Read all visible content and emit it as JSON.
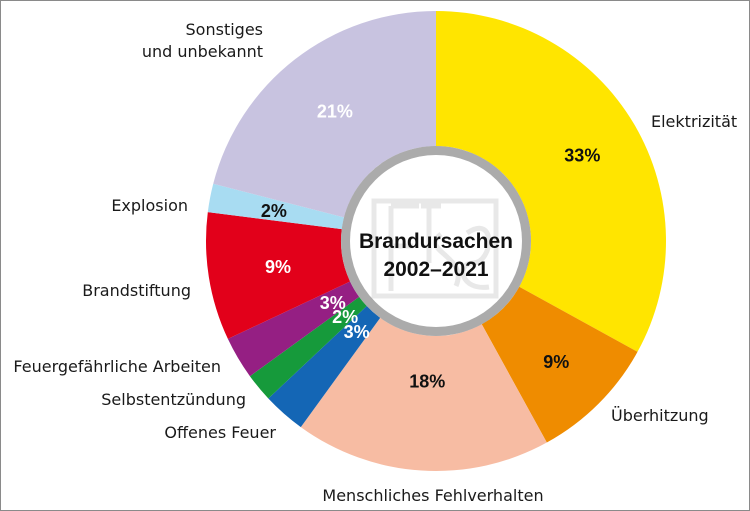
{
  "chart_data": {
    "type": "pie",
    "title": "Brandursachen",
    "subtitle": "2002–2021",
    "unit": "%",
    "categories": [
      "Elektrizität",
      "Überhitzung",
      "Menschliches Fehlverhalten",
      "Offenes Feuer",
      "Selbstentzündung",
      "Feuergefährliche Arbeiten",
      "Brandstiftung",
      "Explosion",
      "Sonstiges und unbekannt"
    ],
    "values": [
      33,
      9,
      18,
      3,
      2,
      3,
      9,
      2,
      21
    ],
    "value_labels": [
      "33%",
      "9%",
      "18%",
      "3%",
      "2%",
      "3%",
      "9%",
      "2%",
      "21%"
    ],
    "label_lines": [
      [
        "Elektrizität"
      ],
      [
        "Überhitzung"
      ],
      [
        "Menschliches Fehlverhalten"
      ],
      [
        "Offenes Feuer"
      ],
      [
        "Selbstentzündung"
      ],
      [
        "Feuergefährliche Arbeiten"
      ],
      [
        "Brandstiftung"
      ],
      [
        "Explosion"
      ],
      [
        "Sonstiges",
        "und unbekannt"
      ]
    ],
    "colors": [
      "#ffe500",
      "#ef8c00",
      "#f7bca3",
      "#1466b5",
      "#169a3b",
      "#951f83",
      "#e2001a",
      "#a8dcf2",
      "#c8c3e0"
    ],
    "value_label_colors": [
      "#111111",
      "#111111",
      "#111111",
      "#ffffff",
      "#ffffff",
      "#ffffff",
      "#ffffff",
      "#111111",
      "#ffffff"
    ],
    "legend_placement": "around the ring",
    "start": "12 o'clock, clockwise",
    "style": "donut"
  }
}
